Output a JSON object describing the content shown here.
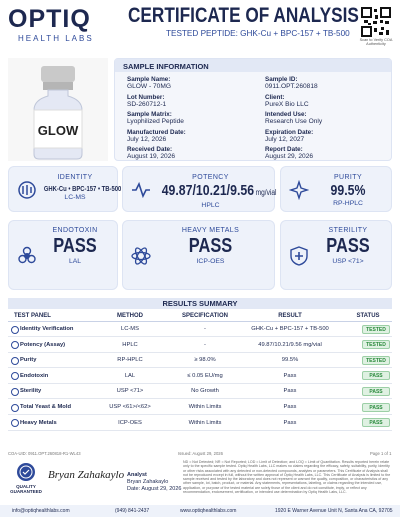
{
  "header": {
    "logo": "OPTIQ",
    "logo_sub": "HEALTH LABS",
    "title": "CERTIFICATE OF ANALYSIS",
    "subtitle": "TESTED PEPTIDE: GHK-Cu + BPC-157 + TB-500",
    "qr_caption": "Scan to Verify COA Authenticity"
  },
  "vial_label": "GLOW",
  "sample_info": {
    "title": "SAMPLE INFORMATION",
    "left": [
      {
        "label": "Sample Name:",
        "value": "GLOW - 70MG"
      },
      {
        "label": "Lot Number:",
        "value": "SD-260712-1"
      },
      {
        "label": "Sample Matrix:",
        "value": "Lyophilized Peptide"
      },
      {
        "label": "Manufactured Date:",
        "value": "July 12, 2026"
      },
      {
        "label": "Received Date:",
        "value": "August 19, 2026"
      }
    ],
    "right": [
      {
        "label": "Sample ID:",
        "value": "0911.OPT.260818"
      },
      {
        "label": "Client:",
        "value": "PureX Bio LLC"
      },
      {
        "label": "Intended Use:",
        "value": "Research Use Only"
      },
      {
        "label": "Expiration Date:",
        "value": "July 12, 2027"
      },
      {
        "label": "Report Date:",
        "value": "August 29, 2026"
      }
    ]
  },
  "cards": [
    {
      "title": "IDENTITY",
      "value": "GHK-Cu • BPC-157 • TB-500",
      "sub": "LC-MS"
    },
    {
      "title": "POTENCY",
      "value": "49.87/10.21/9.56",
      "unit": "mg/vial",
      "sub": "HPLC"
    },
    {
      "title": "PURITY",
      "value": "99.5%",
      "sub": "RP-HPLC"
    },
    {
      "title": "ENDOTOXIN",
      "value": "PASS",
      "sub": "LAL"
    },
    {
      "title": "HEAVY METALS",
      "value": "PASS",
      "sub": "ICP-OES"
    },
    {
      "title": "STERILITY",
      "value": "PASS",
      "sub": "USP <71>"
    }
  ],
  "results": {
    "title": "RESULTS SUMMARY",
    "columns": [
      "TEST PANEL",
      "METHOD",
      "SPECIFICATION",
      "RESULT",
      "STATUS"
    ],
    "rows": [
      [
        "Identity Verification",
        "LC-MS",
        "-",
        "GHK-Cu + BPC-157 + TB-500",
        "TESTED"
      ],
      [
        "Potency (Assay)",
        "HPLC",
        "-",
        "49.87/10.21/9.56 mg/vial",
        "TESTED"
      ],
      [
        "Purity",
        "RP-HPLC",
        "≥ 98.0%",
        "99.5%",
        "TESTED"
      ],
      [
        "Endotoxin",
        "LAL",
        "≤ 0.05 EU/mg",
        "Pass",
        "PASS"
      ],
      [
        "Sterility",
        "USP <71>",
        "No Growth",
        "Pass",
        "PASS"
      ],
      [
        "Total Yeast & Mold",
        "USP <61>/<62>",
        "Within Limits",
        "Pass",
        "PASS"
      ],
      [
        "Heavy Metals",
        "ICP-OES",
        "Within Limits",
        "Pass",
        "PASS"
      ]
    ]
  },
  "footer": {
    "uid": "COA-UID: 0911.OPT.260818-R1-WL43",
    "issued": "Issued: August 29, 2026",
    "page": "Page 1 of 1",
    "badge": "QUALITY GUARANTEED",
    "signature": "Bryan Zahakaylo",
    "analyst_role": "Analyst",
    "analyst_name": "Bryan Zahakaylo",
    "analyst_date": "Date: August 29, 2026",
    "disclaimer": "ND = Not Detected; NR = Not Reported; LOD = Limit of Detection; and LOQ = Limit of Quantitation. Results reported herein relate only to the specific sample tested. Optiq Health Labs, LLC makes no claims regarding the efficacy, safety, suitability, purity, identity or other risks associated with any detected or non-detected compounds, analytes or parameters. This Certificate of Analysis shall not be reproduced except in full, without the written approval of Optiq Health Labs, LLC. This Certificate of Analysis is limited to the sample received and tested by the laboratory and does not represent or warrant the quality, composition, or characteristics of any other sample, lot, batch, product, or material. Any statements, representations, labeling, or claims regarding the intended use, application, or purpose of the tested material are solely those of the client and do not constitute, imply, or reflect any recommendation, endorsement, certification, or intended use determination by Optiq Health Labs, LLC.",
    "email": "info@optiqhealthlabs.com",
    "phone": "(949) 841-2437",
    "web": "www.optiqhealthlabs.com",
    "address": "1920 E Warner Avenue Unit N, Santa Ana CA, 92705"
  }
}
